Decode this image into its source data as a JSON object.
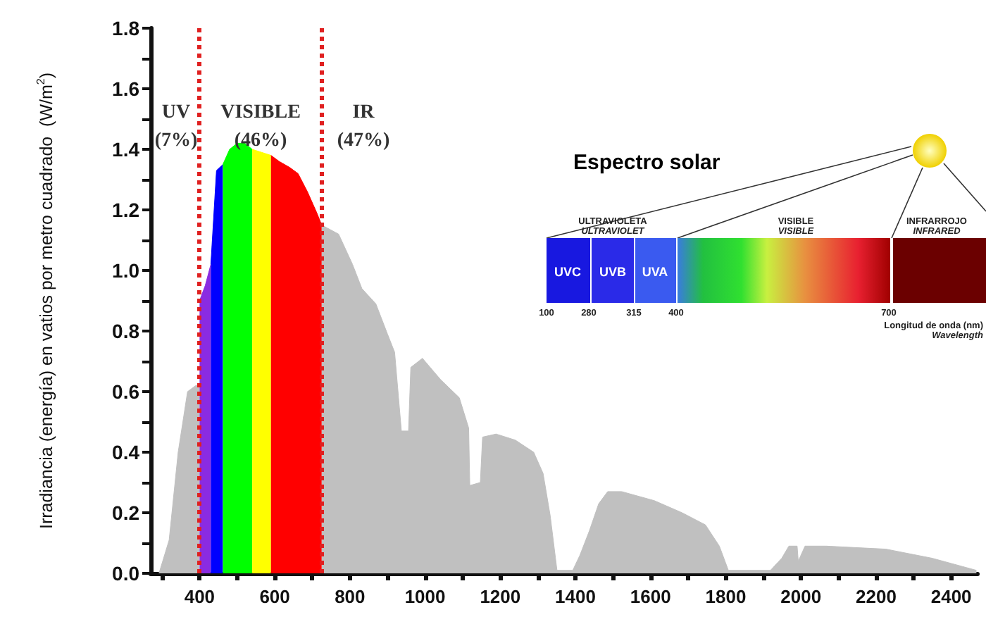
{
  "chart_data": {
    "type": "area",
    "ylabel": "Irradiancia (energía) en vatios por metro cuadrado  (W/m$^{2}$)",
    "xlim": [
      270,
      2470
    ],
    "ylim": [
      0,
      1.8
    ],
    "xticks": [
      {
        "value": 300,
        "label": null
      },
      400,
      {
        "value": 500,
        "label": null
      },
      600,
      {
        "value": 700,
        "label": null
      },
      800,
      {
        "value": 900,
        "label": null
      },
      1000,
      {
        "value": 1100,
        "label": null
      },
      1200,
      {
        "value": 1300,
        "label": null
      },
      1400,
      {
        "value": 1500,
        "label": null
      },
      1600,
      {
        "value": 1700,
        "label": null
      },
      1800,
      {
        "value": 1900,
        "label": null
      },
      2000,
      {
        "value": 2100,
        "label": null
      },
      2200,
      {
        "value": 2300,
        "label": null
      },
      2400
    ],
    "yticks": [
      {
        "value": 0,
        "label": "0.0"
      },
      {
        "value": 0.1,
        "label": null
      },
      {
        "value": 0.2,
        "label": "0.2"
      },
      {
        "value": 0.3,
        "label": null
      },
      {
        "value": 0.4,
        "label": "0.4"
      },
      {
        "value": 0.5,
        "label": null
      },
      {
        "value": 0.6,
        "label": "0.6"
      },
      {
        "value": 0.7,
        "label": null
      },
      {
        "value": 0.8,
        "label": "0.8"
      },
      {
        "value": 0.9,
        "label": null
      },
      {
        "value": 1,
        "label": "1.0"
      },
      {
        "value": 1.1,
        "label": null
      },
      {
        "value": 1.2,
        "label": "1.2"
      },
      {
        "value": 1.3,
        "label": null
      },
      {
        "value": 1.4,
        "label": "1.4"
      },
      {
        "value": 1.5,
        "label": null
      },
      {
        "value": 1.6,
        "label": "1.6"
      },
      {
        "value": 1.7,
        "label": null
      },
      {
        "value": 1.8,
        "label": "1.8"
      }
    ],
    "grid": false,
    "series": [
      {
        "color": "#c0c0c0",
        "x": [
          292,
          319,
          343,
          368,
          390,
          400
        ],
        "values": [
          0,
          0.11,
          0.4,
          0.6,
          0.62,
          0.62
        ]
      },
      {
        "color": "#8a2be2",
        "x": [
          400,
          415,
          430
        ],
        "values": [
          0.9,
          0.95,
          1.02
        ]
      },
      {
        "color": "#0000ff",
        "x": [
          430,
          445,
          462
        ],
        "values": [
          1.02,
          1.33,
          1.35
        ]
      },
      {
        "color": "#00ff00",
        "x": [
          462,
          480,
          500,
          520,
          540
        ],
        "values": [
          1.35,
          1.4,
          1.42,
          1.42,
          1.4
        ]
      },
      {
        "color": "#ffff00",
        "x": [
          540,
          565,
          590
        ],
        "values": [
          1.4,
          1.39,
          1.38
        ]
      },
      {
        "color": "#ff0000",
        "x": [
          590,
          612,
          640,
          662,
          687,
          712,
          725
        ],
        "values": [
          1.38,
          1.36,
          1.34,
          1.32,
          1.26,
          1.19,
          1.15
        ]
      },
      {
        "color": "#c0c0c0",
        "x": [
          725,
          740,
          770,
          807,
          832,
          869,
          900,
          919,
          937,
          956,
          962,
          993,
          1041,
          1091,
          1116,
          1119,
          1147,
          1153,
          1189,
          1240,
          1289,
          1314,
          1333,
          1351,
          1393,
          1412,
          1437,
          1462,
          1486,
          1523,
          1610,
          1684,
          1746,
          1783,
          1807,
          1919,
          1949,
          1968,
          1990,
          1993,
          2011,
          2067,
          2226,
          2349,
          2467
        ],
        "values": [
          1.15,
          1.14,
          1.12,
          1.02,
          0.94,
          0.89,
          0.79,
          0.73,
          0.47,
          0.47,
          0.68,
          0.71,
          0.64,
          0.58,
          0.48,
          0.29,
          0.3,
          0.45,
          0.46,
          0.44,
          0.4,
          0.33,
          0.19,
          0.01,
          0.01,
          0.06,
          0.14,
          0.23,
          0.27,
          0.27,
          0.24,
          0.2,
          0.16,
          0.09,
          0.01,
          0.01,
          0.05,
          0.09,
          0.09,
          0.04,
          0.09,
          0.09,
          0.08,
          0.05,
          0.01
        ]
      }
    ],
    "ref_lines": [
      {
        "axis": "x",
        "value": 400,
        "color": "#e02020",
        "line_style": "dotted"
      },
      {
        "axis": "x",
        "value": 725,
        "color": "#e02020",
        "line_style": "dotted"
      }
    ],
    "annotations": [
      "UV\n(7%)",
      "VISIBLE\n(46%)",
      "IR\n(47%)",
      "Espectro solar",
      "ULTRAVIOLETA",
      "ULTRAVIOLET",
      "VISIBLE",
      "VISIBLE",
      "INFRARROJO",
      "INFRARED",
      "UVC",
      "UVB",
      "UVA",
      "100",
      "280",
      "315",
      "400",
      "700",
      "Longitud de onda (nm)",
      "Wavelength"
    ]
  }
}
